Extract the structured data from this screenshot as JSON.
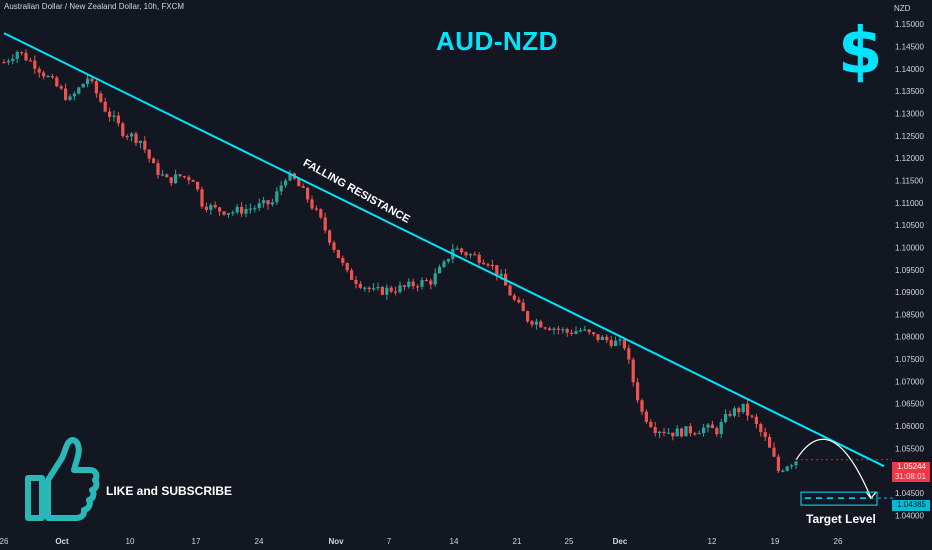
{
  "header": {
    "symbol_line": "Australian Dollar / New Zealand Dollar, 10h, FXCM"
  },
  "title": "AUD-NZD",
  "dollar_glyph": "$",
  "trendline_label": "FALLING RESISTANCE",
  "like_text": "LIKE and SUBSCRIBE",
  "target_label": "Target Level",
  "price_axis": {
    "currency": "NZD",
    "ticks": [
      "1.15000",
      "1.14500",
      "1.14000",
      "1.13500",
      "1.13000",
      "1.12500",
      "1.12000",
      "1.11500",
      "1.11000",
      "1.10500",
      "1.10000",
      "1.09500",
      "1.09000",
      "1.08500",
      "1.08000",
      "1.07500",
      "1.07000",
      "1.06500",
      "1.06000",
      "1.05500",
      "1.05000",
      "1.04500",
      "1.04000"
    ],
    "current_price": "1.05244",
    "current_countdown": "31:08:01",
    "target_price": "1.04385"
  },
  "time_axis": {
    "ticks": [
      "26",
      "Oct",
      "10",
      "17",
      "24",
      "Nov",
      "7",
      "14",
      "21",
      "25",
      "Dec",
      "12",
      "19",
      "26"
    ]
  },
  "colors": {
    "up": "#26a69a",
    "down": "#ef5350",
    "trendline": "#00e5ff",
    "accent": "#00e5ff",
    "background": "#131722"
  },
  "icons": {
    "like": "thumbs-up-icon",
    "dollar": "dollar-sign-icon"
  },
  "chart_data": {
    "type": "candlestick",
    "title": "AUD-NZD",
    "ylabel": "NZD",
    "ylim": [
      1.0385,
      1.1505
    ],
    "x_labels": [
      "26",
      "Oct",
      "10",
      "17",
      "24",
      "Nov",
      "7",
      "14",
      "21",
      "25",
      "Dec",
      "12",
      "19",
      "26"
    ],
    "trendline": {
      "label": "FALLING RESISTANCE",
      "start": [
        0,
        1.148
      ],
      "end": [
        400,
        1.051
      ]
    },
    "target_level": 1.04385,
    "current_price": 1.05244,
    "path_anchors": [
      [
        0,
        1.1415
      ],
      [
        6,
        1.144
      ],
      [
        14,
        1.141
      ],
      [
        22,
        1.137
      ],
      [
        30,
        1.133
      ],
      [
        38,
        1.138
      ],
      [
        46,
        1.131
      ],
      [
        54,
        1.126
      ],
      [
        62,
        1.124
      ],
      [
        68,
        1.118
      ],
      [
        74,
        1.115
      ],
      [
        80,
        1.116
      ],
      [
        86,
        1.1155
      ],
      [
        90,
        1.11
      ],
      [
        96,
        1.1085
      ],
      [
        104,
        1.108
      ],
      [
        114,
        1.109
      ],
      [
        122,
        1.11
      ],
      [
        128,
        1.116
      ],
      [
        132,
        1.115
      ],
      [
        138,
        1.111
      ],
      [
        144,
        1.106
      ],
      [
        150,
        1.1
      ],
      [
        156,
        1.094
      ],
      [
        162,
        1.092
      ],
      [
        168,
        1.09
      ],
      [
        174,
        1.0905
      ],
      [
        182,
        1.091
      ],
      [
        188,
        1.092
      ],
      [
        194,
        1.0925
      ],
      [
        200,
        1.096
      ],
      [
        204,
        1.1
      ],
      [
        208,
        1.099
      ],
      [
        214,
        1.098
      ],
      [
        220,
        1.097
      ],
      [
        226,
        1.093
      ],
      [
        232,
        1.088
      ],
      [
        238,
        1.084
      ],
      [
        244,
        1.083
      ],
      [
        250,
        1.082
      ],
      [
        256,
        1.081
      ],
      [
        262,
        1.0815
      ],
      [
        268,
        1.08
      ],
      [
        276,
        1.079
      ],
      [
        282,
        1.078
      ],
      [
        286,
        1.07
      ],
      [
        290,
        1.063
      ],
      [
        296,
        1.0595
      ],
      [
        304,
        1.0585
      ],
      [
        312,
        1.059
      ],
      [
        318,
        1.0595
      ],
      [
        324,
        1.059
      ],
      [
        330,
        1.063
      ],
      [
        336,
        1.064
      ],
      [
        340,
        1.0615
      ],
      [
        346,
        1.057
      ],
      [
        350,
        1.0525
      ],
      [
        352,
        1.05
      ],
      [
        356,
        1.0515
      ],
      [
        360,
        1.0524
      ]
    ],
    "projection": {
      "from": [
        360,
        1.0524
      ],
      "peak": [
        376,
        1.059
      ],
      "to": [
        394,
        1.044
      ]
    }
  }
}
